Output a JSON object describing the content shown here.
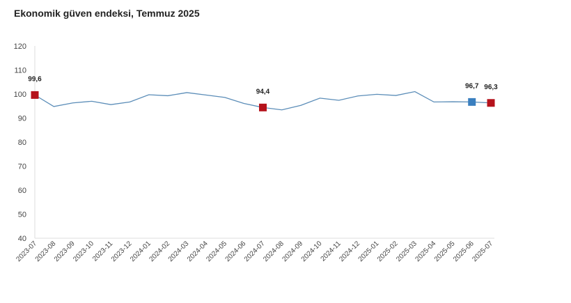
{
  "chart_data": {
    "type": "line",
    "title": "Ekonomik güven endeksi, Temmuz 2025",
    "xlabel": "",
    "ylabel": "",
    "ylim": [
      40,
      120
    ],
    "yticks": [
      40,
      50,
      60,
      70,
      80,
      90,
      100,
      110,
      120
    ],
    "categories": [
      "2023-07",
      "2023-08",
      "2023-09",
      "2023-10",
      "2023-11",
      "2023-12",
      "2024-01",
      "2024-02",
      "2024-03",
      "2024-04",
      "2024-05",
      "2024-06",
      "2024-07",
      "2024-08",
      "2024-09",
      "2024-10",
      "2024-11",
      "2024-12",
      "2025-01",
      "2025-02",
      "2025-03",
      "2025-04",
      "2025-05",
      "2025-06",
      "2025-07"
    ],
    "series": [
      {
        "name": "Ekonomik güven endeksi",
        "values": [
          99.6,
          94.8,
          96.3,
          97.0,
          95.6,
          96.7,
          99.7,
          99.3,
          100.6,
          99.6,
          98.6,
          96.1,
          94.4,
          93.4,
          95.3,
          98.3,
          97.4,
          99.2,
          99.9,
          99.4,
          101.0,
          96.7,
          96.8,
          96.7,
          96.3
        ]
      }
    ],
    "annotations": [
      {
        "index": 0,
        "label": "99,6",
        "color": "#b5121b"
      },
      {
        "index": 12,
        "label": "94,4",
        "color": "#b5121b"
      },
      {
        "index": 23,
        "label": "96,7",
        "color": "#3a7fbf"
      },
      {
        "index": 24,
        "label": "96,3",
        "color": "#b5121b"
      }
    ],
    "line_color": "#5b8db8",
    "grid": false
  }
}
